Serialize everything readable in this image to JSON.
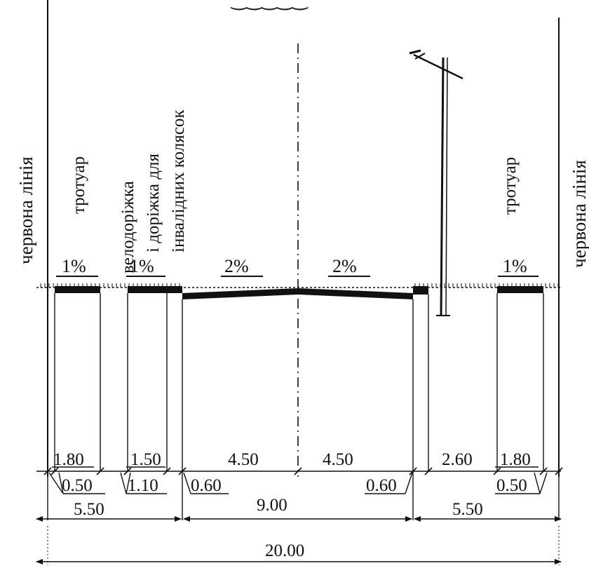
{
  "labels": {
    "red_line_left": "червона лінія",
    "red_line_right": "червона лінія",
    "sidewalk_left": "тротуар",
    "sidewalk_right": "тротуар",
    "bike_line1": "велодоріжка",
    "bike_line2": "і доріжка для",
    "bike_line3": "інвалідних колясок",
    "top_fragment": "‿‿‿‿‿"
  },
  "slopes": {
    "s1": "1%",
    "s2": "1%",
    "s3": "2%",
    "s4": "2%",
    "s5": "1%"
  },
  "dimensions": {
    "d_sidewalk_left": "1.80",
    "d_bike": "1.50",
    "d_lane_left": "4.50",
    "d_lane_right": "4.50",
    "d_verge_right": "2.60",
    "d_sidewalk_right": "1.80",
    "d_strip_left": "0.50",
    "d_strip_bike": "1.10",
    "d_curb_left": "0.60",
    "d_curb_right": "0.60",
    "d_strip_right": "0.50",
    "d_side_left": "5.50",
    "d_carriageway": "9.00",
    "d_side_right": "5.50",
    "d_total": "20.00"
  },
  "colors": {
    "ink": "#111111",
    "background": "#ffffff"
  }
}
